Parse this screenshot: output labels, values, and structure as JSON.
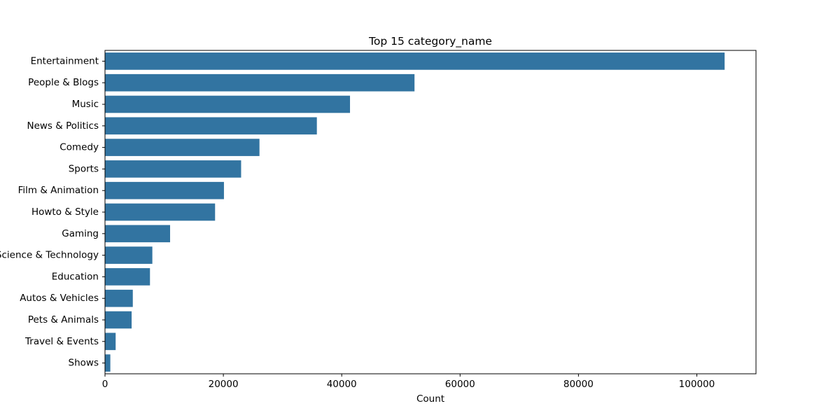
{
  "chart_data": {
    "type": "bar",
    "orientation": "horizontal",
    "title": "Top 15 category_name",
    "xlabel": "Count",
    "ylabel": "",
    "categories": [
      "Entertainment",
      "People & Blogs",
      "Music",
      "News & Politics",
      "Comedy",
      "Sports",
      "Film & Animation",
      "Howto & Style",
      "Gaming",
      "Science & Technology",
      "Education",
      "Autos & Vehicles",
      "Pets & Animals",
      "Travel & Events",
      "Shows"
    ],
    "values": [
      104700,
      52300,
      41400,
      35800,
      26100,
      23000,
      20100,
      18600,
      11000,
      8000,
      7600,
      4700,
      4500,
      1800,
      900
    ],
    "xlim": [
      0,
      110000
    ],
    "xticks": [
      0,
      20000,
      40000,
      60000,
      80000,
      100000
    ],
    "xtick_labels": [
      "0",
      "20000",
      "40000",
      "60000",
      "80000",
      "100000"
    ],
    "grid": false,
    "legend": "none",
    "bar_color": "#3274a1"
  }
}
